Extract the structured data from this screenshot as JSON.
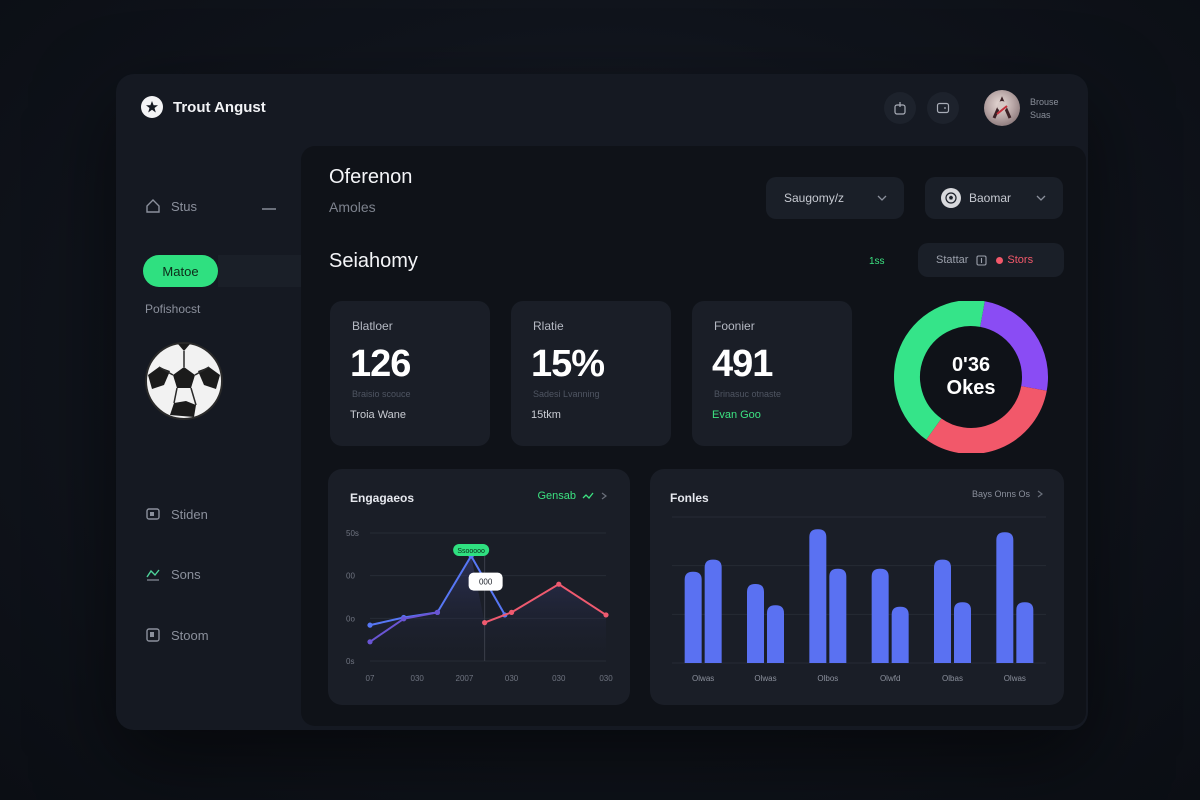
{
  "app": {
    "brand": "Trout Angust"
  },
  "header": {
    "icons": [
      "share-icon",
      "tablet-icon"
    ],
    "user": {
      "line1": "Brouse",
      "line2": "Suas"
    }
  },
  "sidebar": {
    "items": [
      {
        "label": "Stus",
        "icon": "home-icon"
      },
      {
        "label": "Stiden",
        "icon": "tablet-icon"
      },
      {
        "label": "Sons",
        "icon": "chart-icon"
      },
      {
        "label": "Stoom",
        "icon": "doc-icon"
      }
    ],
    "active": "Matoe",
    "section_label": "Pofishocst"
  },
  "main": {
    "title": "Oferenon",
    "subtitle": "Amoles",
    "select1": "Saugomy/z",
    "select2": "Baomar",
    "section_title": "Seiahomy",
    "green_tag": "1ss",
    "filter": {
      "label": "Stattar",
      "badge": "Stors"
    }
  },
  "cards": [
    {
      "label": "Blatloer",
      "value": "126",
      "sub": "Braisio scouce",
      "foot": "Troia Wane",
      "foot_color": "#c9ccd3"
    },
    {
      "label": "Rlatie",
      "value": "15%",
      "sub": "Sadesi Lvanning",
      "foot": "15tkm",
      "foot_color": "#c9ccd3"
    },
    {
      "label": "Foonier",
      "value": "491",
      "sub": "Brinasuc otnaste",
      "foot": "Evan Goo",
      "foot_color": "#3ce281"
    }
  ],
  "donut": {
    "line1": "0'36",
    "line2": "Okes",
    "segments": [
      {
        "name": "purple",
        "value": 25,
        "color": "#8a4cf4"
      },
      {
        "name": "pink",
        "value": 32,
        "color": "#f2586a"
      },
      {
        "name": "green",
        "value": 43,
        "color": "#35e489"
      }
    ]
  },
  "chart_data": [
    {
      "type": "line",
      "title": "Engagaeos",
      "header_right": "Gensab",
      "annotation_label": "Ssooooo",
      "marker_label": "000",
      "ylabels": [
        "50s",
        "00",
        "0o",
        "0s"
      ],
      "xlabels": [
        "07",
        "030",
        "2007",
        "030",
        "030",
        "030"
      ],
      "ylim": [
        0,
        100
      ],
      "series": [
        {
          "name": "blue",
          "color": "#5777f5",
          "x": [
            0,
            1,
            2,
            3,
            4
          ],
          "y": [
            28,
            34,
            38,
            82,
            36
          ]
        },
        {
          "name": "red",
          "color": "#ef5a6f",
          "x": [
            3.4,
            4.2,
            5.6,
            7
          ],
          "y": [
            30,
            38,
            60,
            36
          ]
        },
        {
          "name": "purple",
          "color": "#6a55d4",
          "x": [
            0,
            1,
            2
          ],
          "y": [
            15,
            33,
            38
          ]
        }
      ],
      "xmax": 7
    },
    {
      "type": "bar",
      "title": "Fonles",
      "header_right": "Bays Onns Os",
      "categories": [
        "Olwas",
        "Olwas",
        "Olbos",
        "Olwfd",
        "Olbas",
        "Olwas"
      ],
      "series": [
        {
          "name": "a",
          "color": "#5a71f2",
          "values": [
            60,
            52,
            88,
            62,
            68,
            86
          ]
        },
        {
          "name": "b",
          "color": "#5a71f2",
          "values": [
            68,
            38,
            62,
            37,
            40,
            40
          ]
        }
      ],
      "ylim": [
        0,
        100
      ]
    }
  ],
  "colors": {
    "accent": "#2fe080",
    "panel": "#1a1e27",
    "bg": "#0f1218"
  }
}
